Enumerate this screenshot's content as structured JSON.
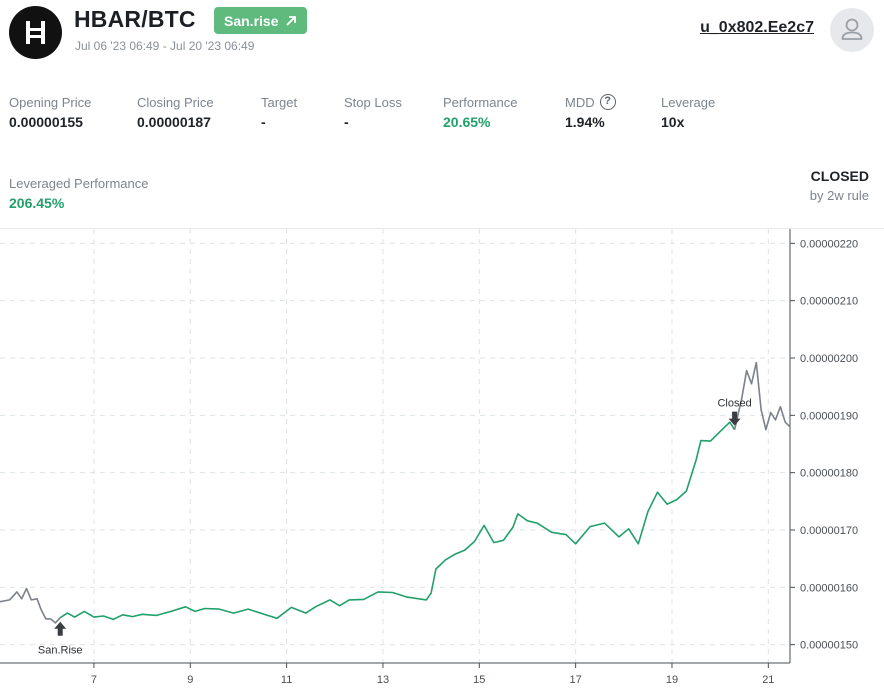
{
  "header": {
    "pair": "HBAR/BTC",
    "tag_label": "San.rise",
    "date_range": "Jul 06 '23 06:49 - Jul 20 '23 06:49",
    "user": "u_0x802.Ee2c7",
    "logo_icon": "hbar-logo-icon",
    "tag_icon": "arrow-up-right-icon",
    "avatar_icon": "user-icon"
  },
  "stats": {
    "opening_price": {
      "label": "Opening Price",
      "value": "0.00000155"
    },
    "closing_price": {
      "label": "Closing Price",
      "value": "0.00000187"
    },
    "target": {
      "label": "Target",
      "value": "-"
    },
    "stop_loss": {
      "label": "Stop Loss",
      "value": "-"
    },
    "performance": {
      "label": "Performance",
      "value": "20.65%"
    },
    "mdd": {
      "label": "MDD",
      "value": "1.94%",
      "icon": "help-circle-icon"
    },
    "leverage": {
      "label": "Leverage",
      "value": "10x"
    },
    "leveraged_performance": {
      "label": "Leveraged Performance",
      "value": "206.45%"
    }
  },
  "status": {
    "state": "CLOSED",
    "rule": "by 2w rule"
  },
  "colors": {
    "accent_green": "#21a06a",
    "tag_green": "#5fba7d",
    "pre_post_gray": "#7c818a",
    "grid": "#dfe2e6"
  },
  "chart_data": {
    "type": "line",
    "title": "",
    "xlabel": "",
    "ylabel": "",
    "x_ticks": [
      "7",
      "9",
      "11",
      "13",
      "15",
      "17",
      "19",
      "21"
    ],
    "x_tick_days": [
      7,
      9,
      11,
      13,
      15,
      17,
      19,
      21
    ],
    "y_ticks": [
      "0.00000150",
      "0.00000160",
      "0.00000170",
      "0.00000180",
      "0.00000190",
      "0.00000200",
      "0.00000210",
      "0.00000220"
    ],
    "xlim": [
      5.05,
      21.45
    ],
    "ylim": [
      1.468e-06,
      2.225e-06
    ],
    "grid": true,
    "unit_note": "x = day of July 2023",
    "series": [
      {
        "role": "before-open",
        "color": "#7c818a",
        "points": [
          [
            5.05,
            1.575e-06
          ],
          [
            5.25,
            1.578e-06
          ],
          [
            5.4,
            1.592e-06
          ],
          [
            5.5,
            1.58e-06
          ],
          [
            5.6,
            1.598e-06
          ],
          [
            5.7,
            1.578e-06
          ],
          [
            5.82,
            1.58e-06
          ],
          [
            5.9,
            1.562e-06
          ],
          [
            6.0,
            1.545e-06
          ],
          [
            6.1,
            1.545e-06
          ],
          [
            6.2,
            1.538e-06
          ],
          [
            6.3,
            1.547e-06
          ]
        ]
      },
      {
        "role": "trade",
        "color": "#21a06a",
        "points": [
          [
            6.3,
            1.547e-06
          ],
          [
            6.45,
            1.555e-06
          ],
          [
            6.6,
            1.548e-06
          ],
          [
            6.8,
            1.558e-06
          ],
          [
            7.0,
            1.548e-06
          ],
          [
            7.2,
            1.55e-06
          ],
          [
            7.4,
            1.544e-06
          ],
          [
            7.6,
            1.552e-06
          ],
          [
            7.8,
            1.549e-06
          ],
          [
            8.0,
            1.553e-06
          ],
          [
            8.3,
            1.551e-06
          ],
          [
            8.6,
            1.558e-06
          ],
          [
            8.9,
            1.566e-06
          ],
          [
            9.1,
            1.558e-06
          ],
          [
            9.3,
            1.563e-06
          ],
          [
            9.6,
            1.562e-06
          ],
          [
            9.9,
            1.555e-06
          ],
          [
            10.2,
            1.562e-06
          ],
          [
            10.5,
            1.554e-06
          ],
          [
            10.8,
            1.546e-06
          ],
          [
            11.1,
            1.565e-06
          ],
          [
            11.4,
            1.555e-06
          ],
          [
            11.6,
            1.566e-06
          ],
          [
            11.9,
            1.578e-06
          ],
          [
            12.1,
            1.568e-06
          ],
          [
            12.3,
            1.578e-06
          ],
          [
            12.6,
            1.579e-06
          ],
          [
            12.9,
            1.592e-06
          ],
          [
            13.2,
            1.591e-06
          ],
          [
            13.5,
            1.583e-06
          ],
          [
            13.9,
            1.578e-06
          ],
          [
            14.0,
            1.59e-06
          ],
          [
            14.1,
            1.632e-06
          ],
          [
            14.3,
            1.648e-06
          ],
          [
            14.5,
            1.658e-06
          ],
          [
            14.7,
            1.665e-06
          ],
          [
            14.9,
            1.68e-06
          ],
          [
            15.1,
            1.708e-06
          ],
          [
            15.3,
            1.678e-06
          ],
          [
            15.5,
            1.682e-06
          ],
          [
            15.7,
            1.705e-06
          ],
          [
            15.8,
            1.728e-06
          ],
          [
            16.0,
            1.716e-06
          ],
          [
            16.2,
            1.712e-06
          ],
          [
            16.5,
            1.696e-06
          ],
          [
            16.8,
            1.692e-06
          ],
          [
            17.0,
            1.676e-06
          ],
          [
            17.3,
            1.706e-06
          ],
          [
            17.6,
            1.712e-06
          ],
          [
            17.9,
            1.688e-06
          ],
          [
            18.1,
            1.702e-06
          ],
          [
            18.3,
            1.676e-06
          ],
          [
            18.5,
            1.732e-06
          ],
          [
            18.7,
            1.766e-06
          ],
          [
            18.9,
            1.745e-06
          ],
          [
            19.1,
            1.753e-06
          ],
          [
            19.3,
            1.768e-06
          ],
          [
            19.5,
            1.822e-06
          ],
          [
            19.6,
            1.856e-06
          ],
          [
            19.8,
            1.855e-06
          ],
          [
            20.0,
            1.872e-06
          ],
          [
            20.2,
            1.888e-06
          ],
          [
            20.3,
            1.875e-06
          ]
        ]
      },
      {
        "role": "after-close",
        "color": "#7c818a",
        "points": [
          [
            20.3,
            1.875e-06
          ],
          [
            20.45,
            1.93e-06
          ],
          [
            20.55,
            1.978e-06
          ],
          [
            20.65,
            1.955e-06
          ],
          [
            20.75,
            1.992e-06
          ],
          [
            20.85,
            1.91e-06
          ],
          [
            20.95,
            1.875e-06
          ],
          [
            21.05,
            1.905e-06
          ],
          [
            21.15,
            1.892e-06
          ],
          [
            21.25,
            1.915e-06
          ],
          [
            21.35,
            1.888e-06
          ],
          [
            21.45,
            1.88e-06
          ]
        ]
      }
    ],
    "markers": [
      {
        "label": "San.Rise",
        "x": 6.3,
        "y": 1.547e-06,
        "kind": "up"
      },
      {
        "label": "Closed",
        "x": 20.3,
        "y": 1.875e-06,
        "kind": "down"
      }
    ]
  }
}
